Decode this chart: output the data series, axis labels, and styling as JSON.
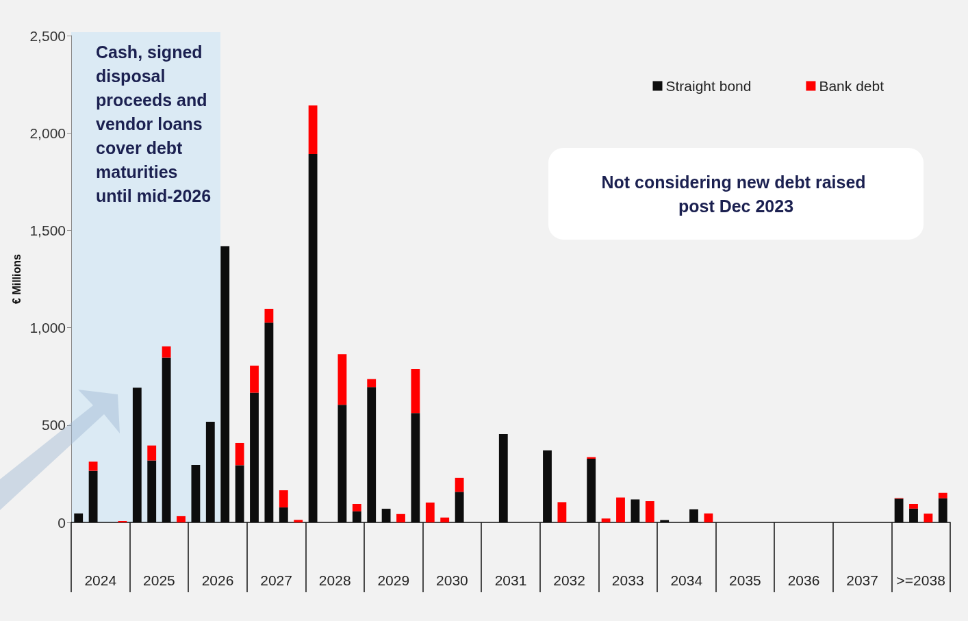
{
  "chart_data": {
    "type": "bar",
    "stacked": true,
    "ylabel": "€ Millions",
    "categories": [
      null,
      "2024",
      null,
      null,
      null,
      "2025",
      null,
      null,
      null,
      "2026",
      null,
      null,
      null,
      "2027",
      null,
      null,
      null,
      "2028",
      null,
      null,
      null,
      "2029",
      null,
      null,
      null,
      "2030",
      null,
      null,
      null,
      "2031",
      null,
      null,
      null,
      "2032",
      null,
      null,
      null,
      "2033",
      null,
      null,
      null,
      "2034",
      null,
      null,
      null,
      "2035",
      null,
      null,
      null,
      "2036",
      null,
      null,
      null,
      "2037",
      null,
      null,
      null,
      ">=2038",
      null,
      null
    ],
    "series": [
      {
        "name": "Straight bond",
        "color": "#0d0d0d",
        "values": [
          46,
          265,
          null,
          null,
          692,
          318,
          846,
          null,
          295,
          517,
          1419,
          294,
          666,
          1026,
          77,
          null,
          1892,
          null,
          604,
          57,
          695,
          70,
          null,
          562,
          null,
          null,
          157,
          null,
          null,
          454,
          null,
          null,
          370,
          null,
          null,
          327,
          null,
          null,
          118,
          null,
          12,
          null,
          67,
          null,
          null,
          null,
          null,
          null,
          null,
          null,
          null,
          null,
          null,
          null,
          null,
          null,
          122,
          71,
          null,
          124
        ]
      },
      {
        "name": "Bank debt",
        "color": "#ff0000",
        "values": [
          null,
          47,
          null,
          7,
          null,
          77,
          58,
          32,
          null,
          null,
          null,
          114,
          139,
          71,
          88,
          13,
          249,
          null,
          260,
          38,
          41,
          null,
          43,
          226,
          102,
          25,
          72,
          null,
          null,
          null,
          null,
          null,
          null,
          104,
          null,
          8,
          20,
          128,
          null,
          109,
          null,
          null,
          null,
          46,
          null,
          null,
          null,
          null,
          null,
          null,
          null,
          null,
          null,
          null,
          null,
          null,
          3,
          24,
          45,
          28
        ]
      }
    ],
    "ylim": [
      0,
      2500
    ],
    "yticks": [
      0,
      {
        "value": 500,
        "label": "500"
      },
      {
        "value": 1000,
        "label": "1,000"
      },
      {
        "value": 1500,
        "label": "1,500"
      },
      {
        "value": 2000,
        "label": "2,000"
      },
      {
        "value": 2500,
        "label": "2,500"
      }
    ],
    "grid": false,
    "legend": "top right",
    "annotations": [
      "Cash, signed disposal proceeds and vendor loans cover debt maturities until mid-2026",
      "Not considering new debt raised post Dec 2023"
    ]
  }
}
